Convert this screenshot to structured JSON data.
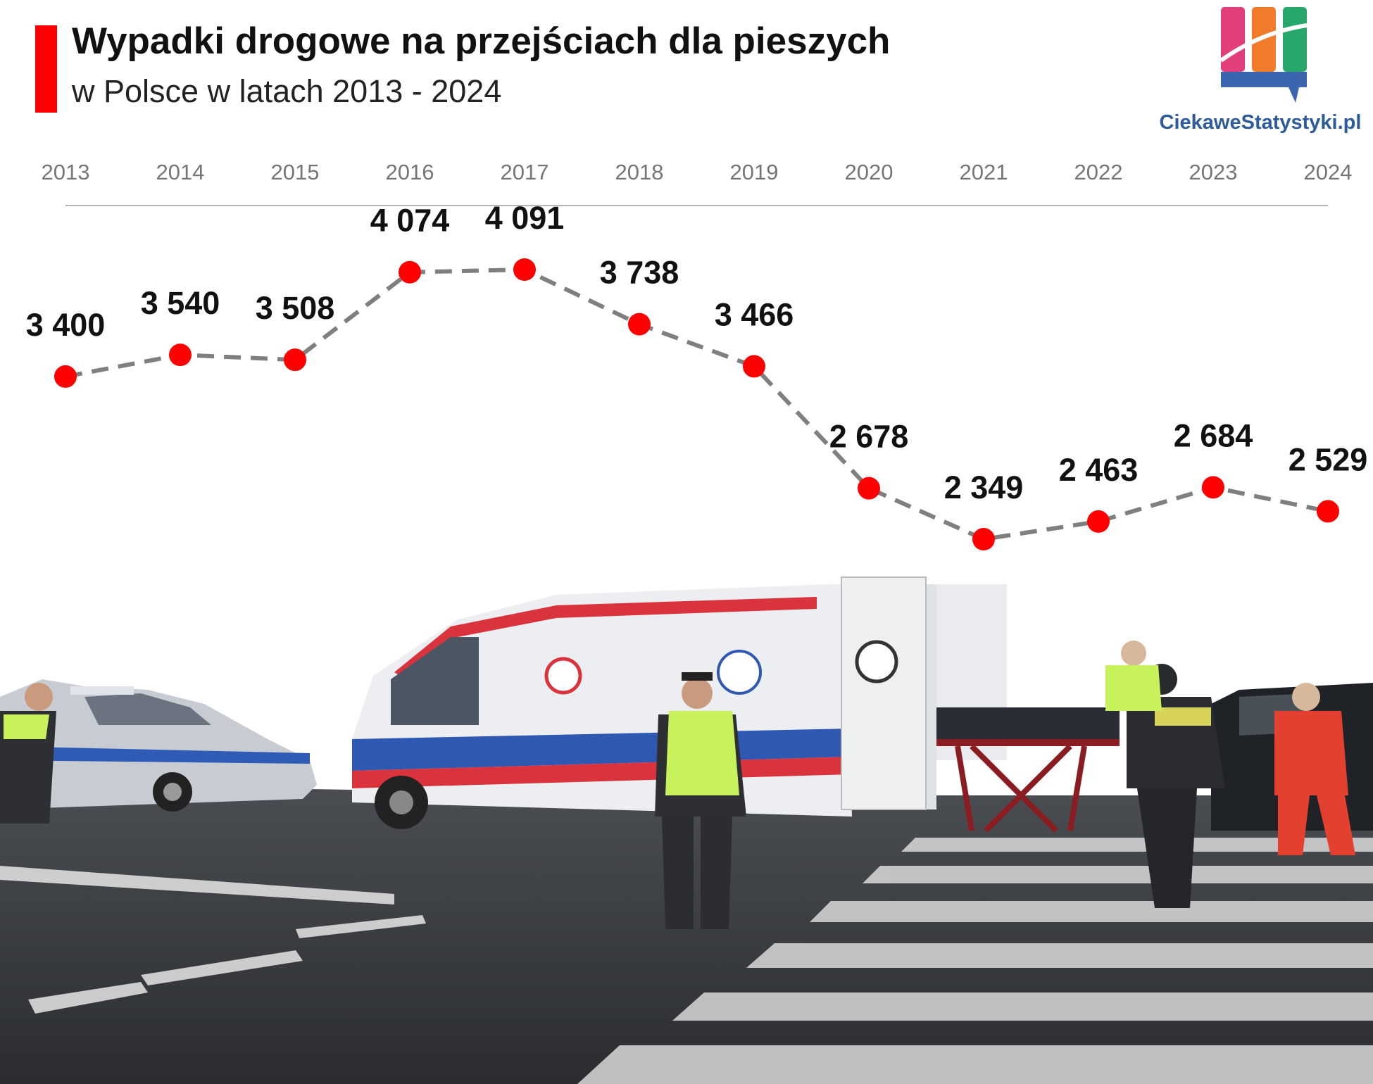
{
  "header": {
    "title": "Wypadki drogowe na przejściach dla pieszych",
    "subtitle": "w Polsce w latach 2013 - 2024"
  },
  "brand": {
    "name": "CiekaweStatystyki.pl",
    "colors": [
      "#e23e7c",
      "#f07b2a",
      "#27a76a",
      "#3c65b0"
    ]
  },
  "colors": {
    "accent": "#ff0000",
    "marker": "#ff0000",
    "line": "#7f7f7f",
    "axis_text": "#767676"
  },
  "photo_description_icons": {
    "vehicles": [
      "police-car",
      "ambulance",
      "dark-car"
    ],
    "people": [
      "police-officer",
      "paramedics"
    ]
  },
  "chart_data": {
    "type": "line",
    "title": "Wypadki drogowe na przejściach dla pieszych",
    "subtitle": "w Polsce w latach 2013 - 2024",
    "x": [
      "2013",
      "2014",
      "2015",
      "2016",
      "2017",
      "2018",
      "2019",
      "2020",
      "2021",
      "2022",
      "2023",
      "2024"
    ],
    "values": [
      3400,
      3540,
      3508,
      4074,
      4091,
      3738,
      3466,
      2678,
      2349,
      2463,
      2684,
      2529
    ],
    "labels": [
      "3 400",
      "3 540",
      "3 508",
      "4 074",
      "4 091",
      "3 738",
      "3 466",
      "2 678",
      "2 349",
      "2 463",
      "2 684",
      "2 529"
    ],
    "xlabel": "",
    "ylabel": "",
    "x_axis_position": "top",
    "line_style": "dashed",
    "marker": "circle",
    "grid": false,
    "legend": "none"
  }
}
